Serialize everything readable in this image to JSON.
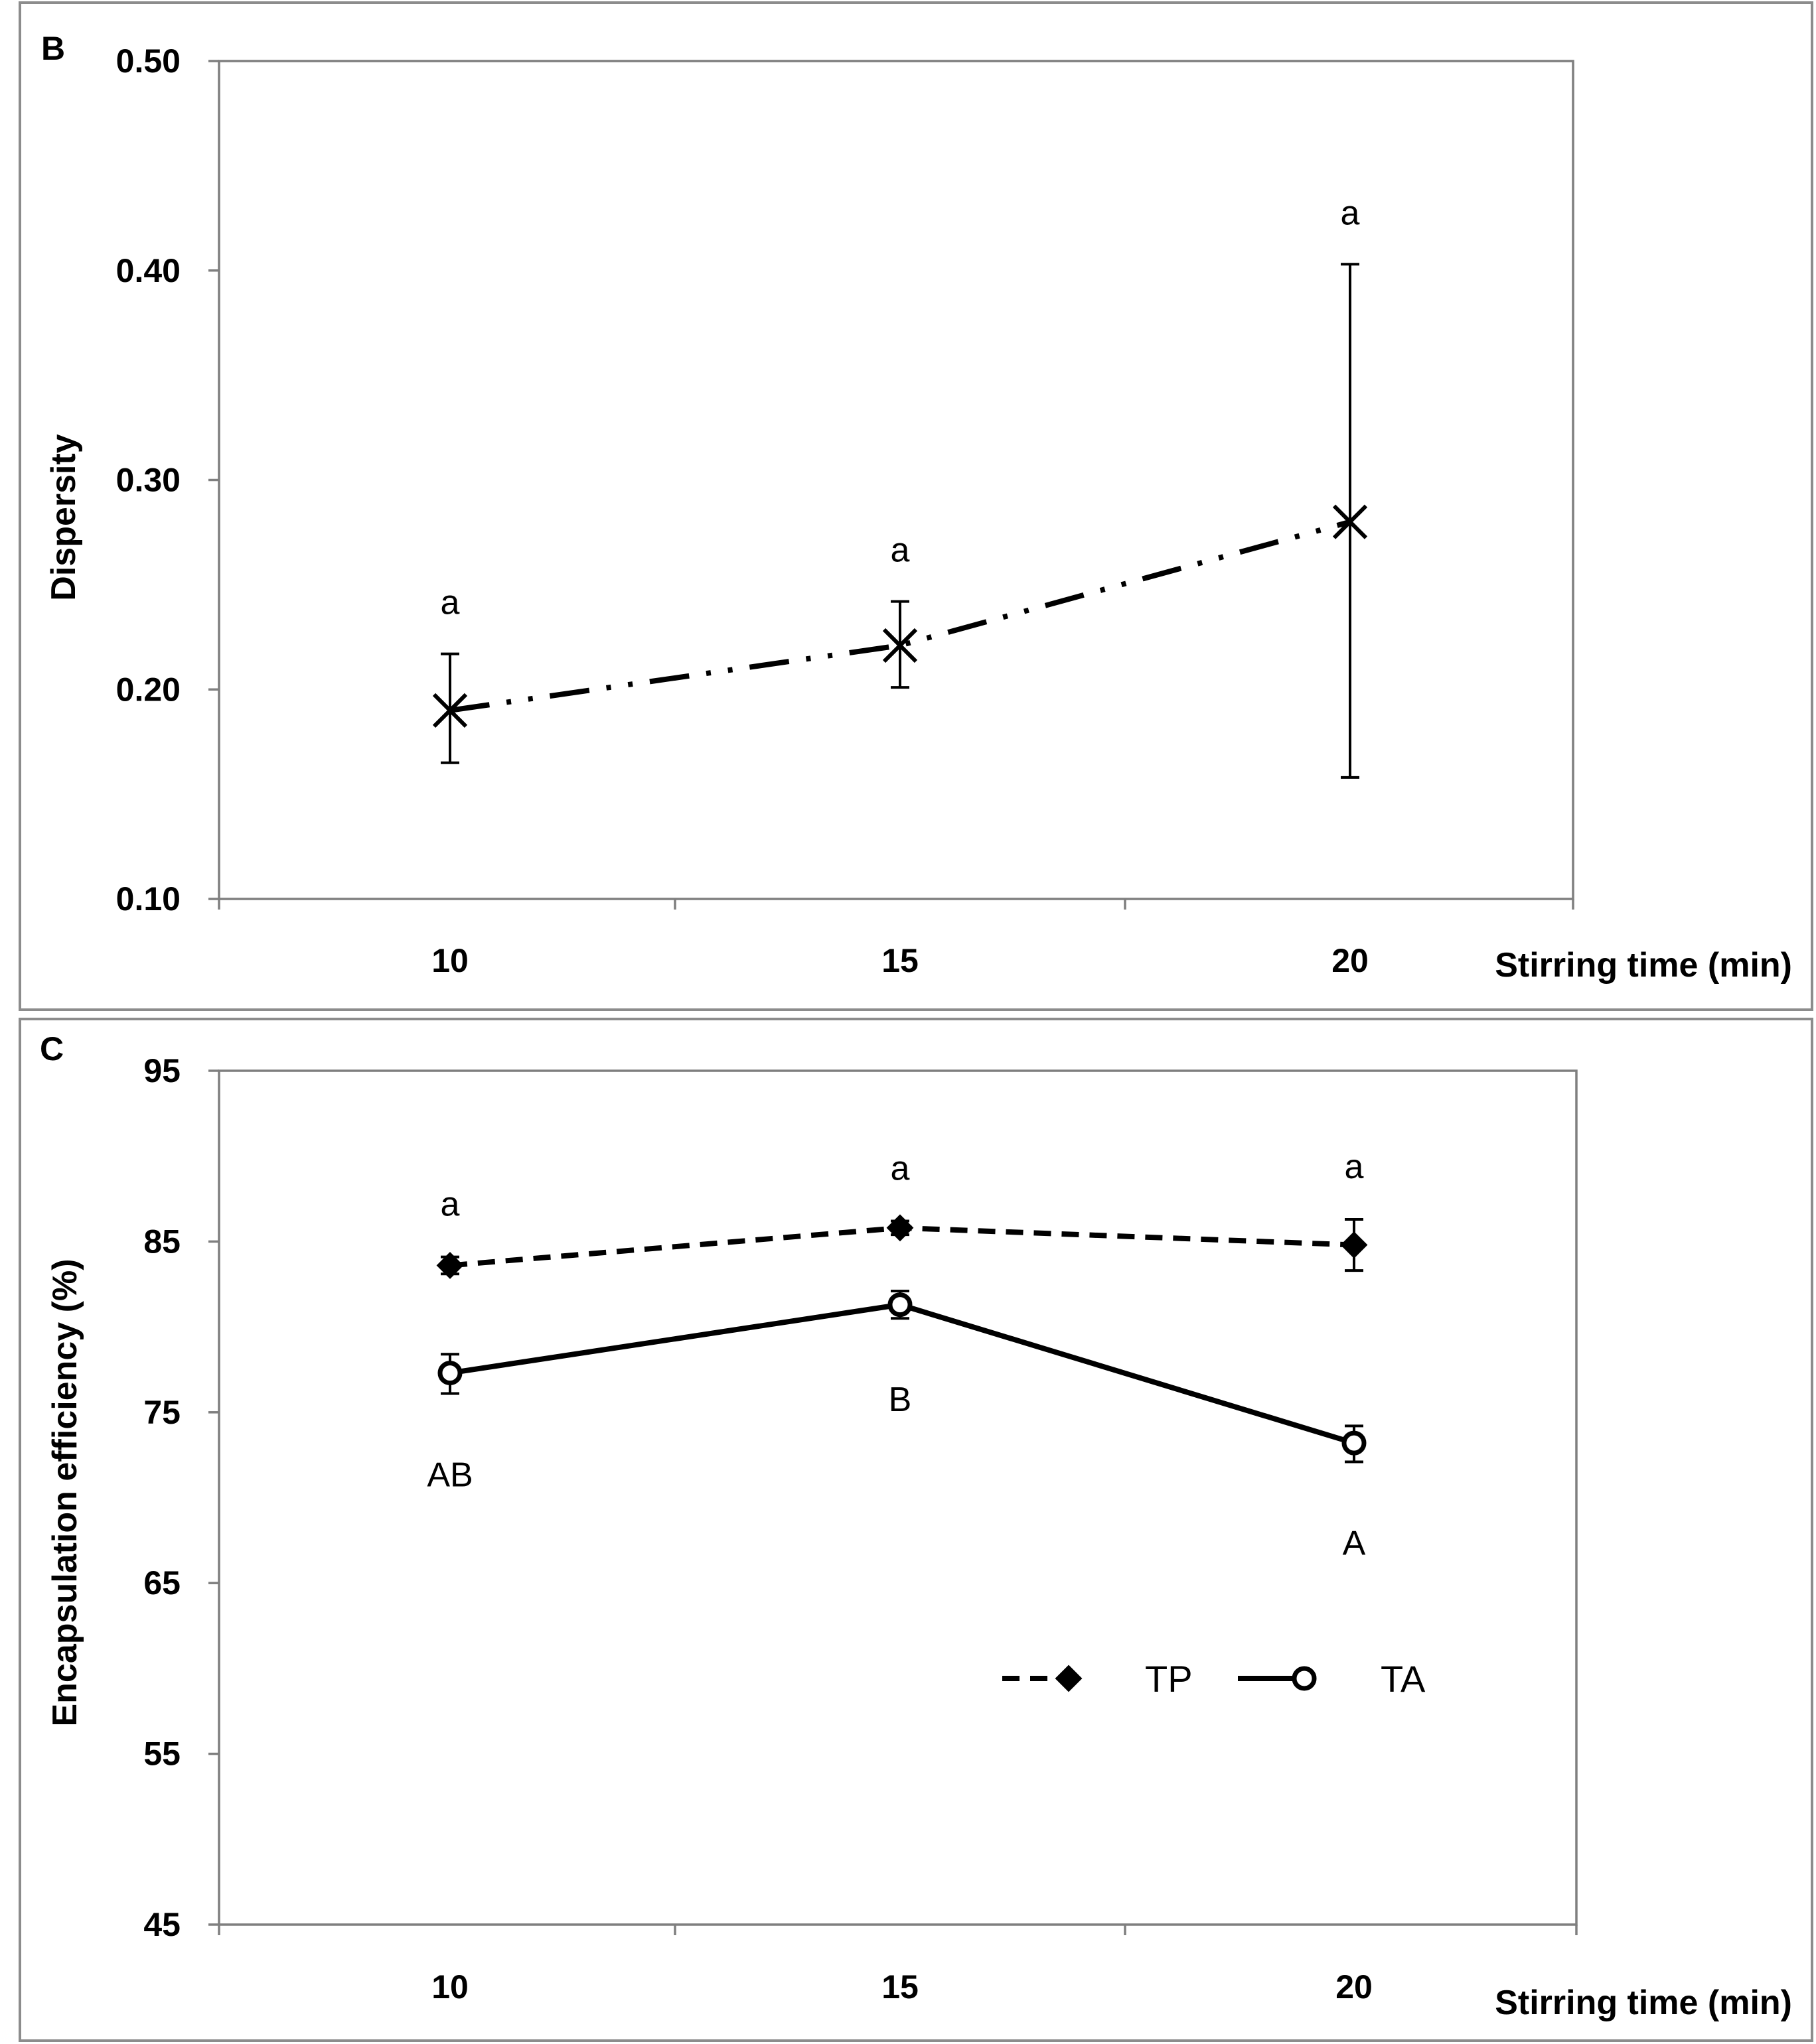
{
  "chart_data": [
    {
      "panel": "B",
      "type": "line",
      "xlabel": "Stirring time (min)",
      "ylabel": "Dispersity",
      "categories": [
        "10",
        "15",
        "20"
      ],
      "ylim": [
        0.1,
        0.5
      ],
      "yticks": [
        "0.10",
        "0.20",
        "0.30",
        "0.40",
        "0.50"
      ],
      "ytick_values": [
        0.1,
        0.2,
        0.3,
        0.4,
        0.5
      ],
      "grid": false,
      "series": [
        {
          "values": [
            0.19,
            0.221,
            0.28
          ],
          "err_low": [
            0.165,
            0.201,
            0.158
          ],
          "err_high": [
            0.217,
            0.242,
            0.403
          ],
          "marker": "x",
          "line_style": "dash-dot-dot",
          "color": "#000000",
          "annotations": [
            "a",
            "a",
            "a"
          ],
          "annotation_position": "above"
        }
      ]
    },
    {
      "panel": "C",
      "type": "line",
      "xlabel": "Stirring time (min)",
      "ylabel": "Encapsulation efficiency (%)",
      "categories": [
        "10",
        "15",
        "20"
      ],
      "ylim": [
        45,
        95
      ],
      "yticks": [
        "45",
        "55",
        "65",
        "75",
        "85",
        "95"
      ],
      "ytick_values": [
        45,
        55,
        65,
        75,
        85,
        95
      ],
      "grid": false,
      "legend_position": "lower-right",
      "series": [
        {
          "name": "TP",
          "values": [
            83.6,
            85.8,
            84.8
          ],
          "err_low": [
            83.1,
            85.4,
            83.3
          ],
          "err_high": [
            84.1,
            86.2,
            86.3
          ],
          "marker": "diamond",
          "line_style": "dashed",
          "color": "#000000",
          "annotations": [
            "a",
            "a",
            "a"
          ],
          "annotation_position": "above"
        },
        {
          "name": "TA",
          "values": [
            77.3,
            81.3,
            73.2
          ],
          "err_low": [
            76.1,
            80.5,
            72.1
          ],
          "err_high": [
            78.4,
            82.1,
            74.2
          ],
          "marker": "open-circle",
          "line_style": "solid",
          "color": "#000000",
          "annotations": [
            "AB",
            "B",
            "A"
          ],
          "annotation_position": "below"
        }
      ]
    }
  ]
}
